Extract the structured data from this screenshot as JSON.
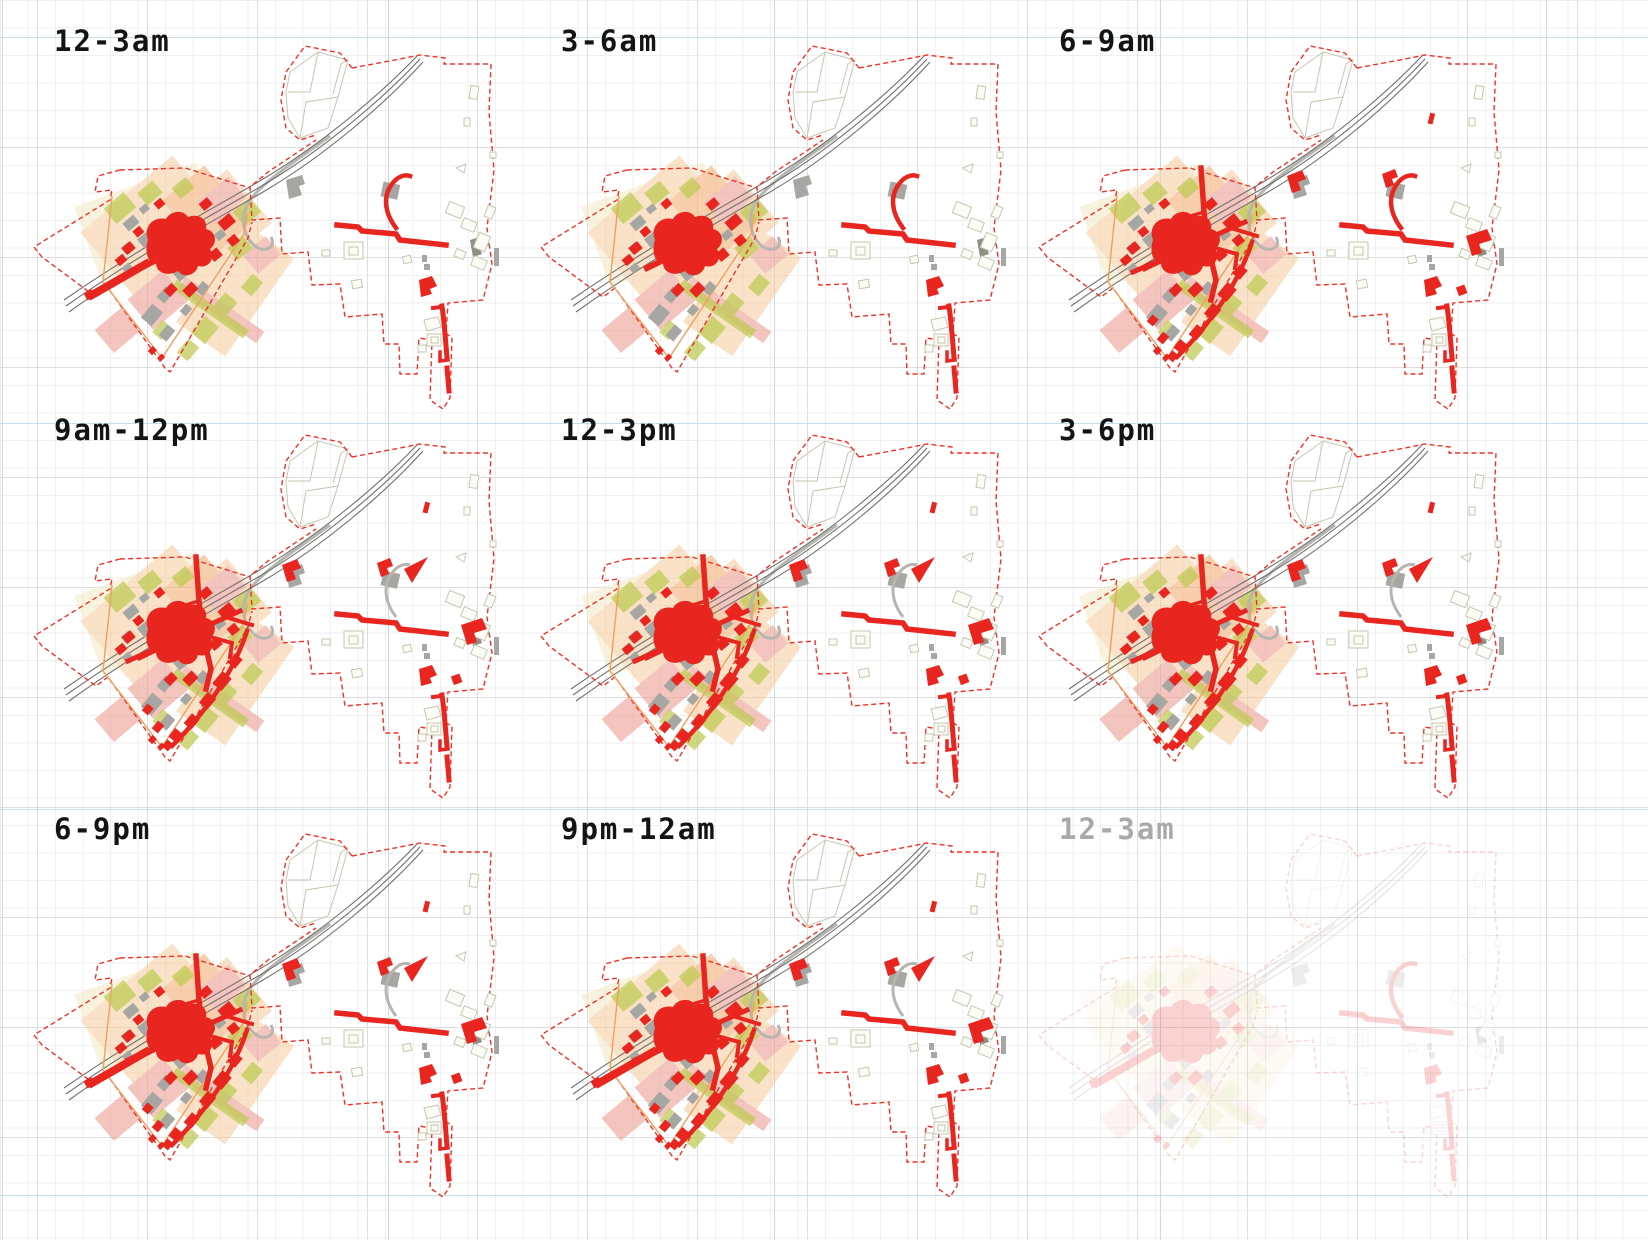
{
  "figure": {
    "type": "time-of-day activity map series",
    "panel_count": 9,
    "map_features": [
      "site-boundary-dashed",
      "railway",
      "station-cluster",
      "zoning-patches",
      "activity-roads",
      "activity-buildings"
    ]
  },
  "colors": {
    "bg": "#ffffff",
    "grid_minor": "#efefef",
    "grid_major": "#dedede",
    "grid_blue": "#cadeea",
    "red": "#e8251f",
    "red_dash": "#ef3226",
    "rail": "#6f6f6f",
    "road_gray": "#b6b6ae",
    "gray_building": "#a6a6a3",
    "gray_dark": "#8f8f85",
    "outline_building": "#c6c6b2",
    "orange_line": "#f0a060",
    "zone_cream": "#f5ecca",
    "zone_peach": "#f6cfa2",
    "zone_orange": "#f2b078",
    "zone_pink": "#eda095",
    "zone_green": "#bdca4e",
    "label": "#141414",
    "label_faded": "#a9a9a9"
  },
  "panels": [
    {
      "label": "12-3am",
      "faded": false,
      "layers": [
        "core",
        "west-road",
        "branch-night",
        "east-road",
        "south-road",
        "blob"
      ]
    },
    {
      "label": "3-6am",
      "faded": false,
      "layers": [
        "core",
        "branch-night",
        "east-road",
        "south-road",
        "blob"
      ]
    },
    {
      "label": "6-9am",
      "faded": false,
      "layers": [
        "core",
        "network",
        "south-cluster",
        "branch-night",
        "east-road",
        "south-road",
        "blob",
        "flags"
      ]
    },
    {
      "label": "9am-12pm",
      "faded": false,
      "layers": [
        "core",
        "network",
        "south-cluster",
        "branch-day",
        "east-road",
        "south-road",
        "blob",
        "flags"
      ]
    },
    {
      "label": "12-3pm",
      "faded": false,
      "layers": [
        "core",
        "network",
        "south-cluster",
        "branch-day",
        "east-road",
        "south-road",
        "blob",
        "flags"
      ]
    },
    {
      "label": "3-6pm",
      "faded": false,
      "layers": [
        "core",
        "network",
        "south-cluster",
        "branch-day",
        "east-road",
        "south-road",
        "blob",
        "flags"
      ]
    },
    {
      "label": "6-9pm",
      "faded": false,
      "layers": [
        "core",
        "west-road",
        "network",
        "south-cluster",
        "branch-day",
        "east-road",
        "south-road",
        "blob",
        "flags"
      ]
    },
    {
      "label": "9pm-12am",
      "faded": false,
      "layers": [
        "core",
        "west-road",
        "network",
        "south-cluster",
        "branch-day",
        "east-road",
        "south-road",
        "blob",
        "flags"
      ]
    },
    {
      "label": "12-3am",
      "faded": true,
      "layers": [
        "core",
        "west-road",
        "branch-night",
        "east-road",
        "south-road",
        "blob"
      ]
    }
  ]
}
